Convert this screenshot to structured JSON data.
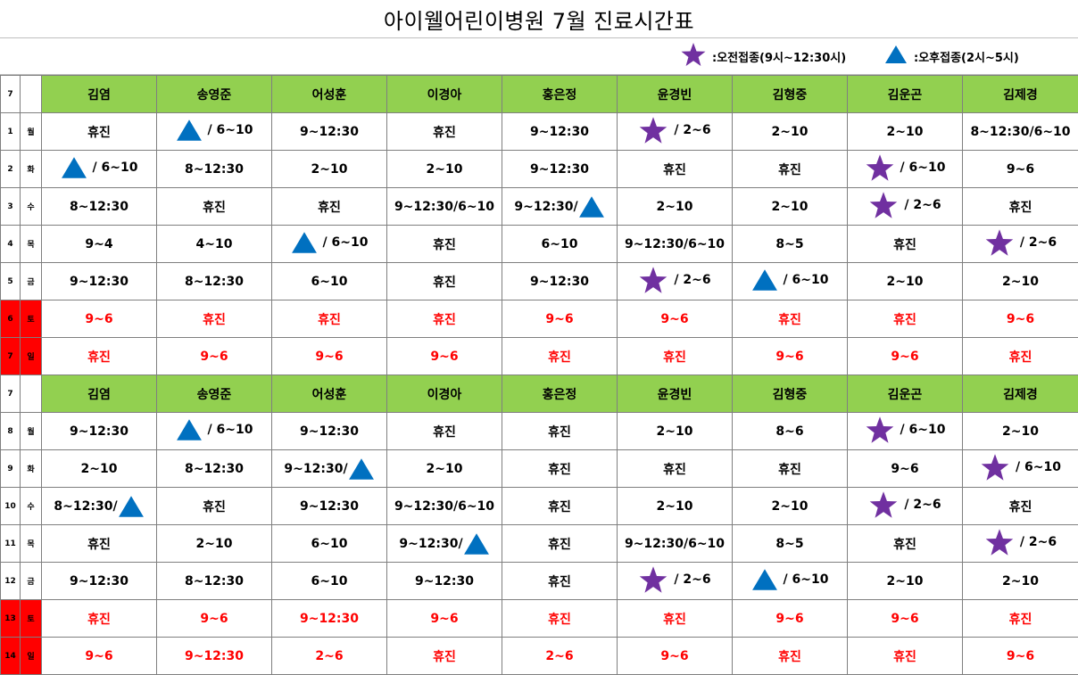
{
  "title": "아이웰어린이병원 7월 진료시간표",
  "legend": [
    {
      "icon": "star",
      "label": ":오전접종(9시~12:30시)"
    },
    {
      "icon": "triangle",
      "label": ":오후접종(2시~5시)"
    }
  ],
  "colors": {
    "header_green": "#92d050",
    "weekend_red": "#ff0000",
    "star_purple": "#7030a0",
    "triangle_blue": "#0070c0"
  },
  "month_label": "7",
  "doctors": [
    "김염",
    "송영준",
    "어성훈",
    "이경아",
    "홍은정",
    "윤경빈",
    "김형중",
    "김운곤",
    "김제경"
  ],
  "blocks": [
    {
      "rows": [
        {
          "date": "1",
          "day": "월",
          "weekend": false,
          "cells": [
            {
              "text": "휴진"
            },
            {
              "icon": "triangle",
              "text": "/ 6~10"
            },
            {
              "text": "9~12:30"
            },
            {
              "text": "휴진"
            },
            {
              "text": "9~12:30"
            },
            {
              "icon": "star",
              "text": "/ 2~6"
            },
            {
              "text": "2~10"
            },
            {
              "text": "2~10"
            },
            {
              "text": "8~12:30/6~10"
            }
          ]
        },
        {
          "date": "2",
          "day": "화",
          "weekend": false,
          "cells": [
            {
              "icon": "triangle",
              "text": "/ 6~10"
            },
            {
              "text": "8~12:30"
            },
            {
              "text": "2~10"
            },
            {
              "text": "2~10"
            },
            {
              "text": "9~12:30"
            },
            {
              "text": "휴진"
            },
            {
              "text": "휴진"
            },
            {
              "icon": "star",
              "text": "/ 6~10"
            },
            {
              "text": "9~6"
            }
          ]
        },
        {
          "date": "3",
          "day": "수",
          "weekend": false,
          "cells": [
            {
              "text": "8~12:30"
            },
            {
              "text": "휴진"
            },
            {
              "text": "휴진"
            },
            {
              "text": "9~12:30/6~10"
            },
            {
              "text": "9~12:30/",
              "icon_after": "triangle"
            },
            {
              "text": "2~10"
            },
            {
              "text": "2~10"
            },
            {
              "icon": "star",
              "text": "/ 2~6"
            },
            {
              "text": "휴진"
            }
          ]
        },
        {
          "date": "4",
          "day": "목",
          "weekend": false,
          "cells": [
            {
              "text": "9~4"
            },
            {
              "text": "4~10"
            },
            {
              "icon": "triangle",
              "text": "/ 6~10"
            },
            {
              "text": "휴진"
            },
            {
              "text": "6~10"
            },
            {
              "text": "9~12:30/6~10"
            },
            {
              "text": "8~5"
            },
            {
              "text": "휴진"
            },
            {
              "icon": "star",
              "text": "/ 2~6"
            }
          ]
        },
        {
          "date": "5",
          "day": "금",
          "weekend": false,
          "cells": [
            {
              "text": "9~12:30"
            },
            {
              "text": "8~12:30"
            },
            {
              "text": "6~10"
            },
            {
              "text": "휴진"
            },
            {
              "text": "9~12:30"
            },
            {
              "icon": "star",
              "text": "/ 2~6"
            },
            {
              "icon": "triangle",
              "text": "/ 6~10"
            },
            {
              "text": "2~10"
            },
            {
              "text": "2~10"
            }
          ]
        },
        {
          "date": "6",
          "day": "토",
          "weekend": true,
          "cells": [
            {
              "text": "9~6"
            },
            {
              "text": "휴진"
            },
            {
              "text": "휴진"
            },
            {
              "text": "휴진"
            },
            {
              "text": "9~6"
            },
            {
              "text": "9~6"
            },
            {
              "text": "휴진"
            },
            {
              "text": "휴진"
            },
            {
              "text": "9~6"
            }
          ]
        },
        {
          "date": "7",
          "day": "일",
          "weekend": true,
          "cells": [
            {
              "text": "휴진"
            },
            {
              "text": "9~6"
            },
            {
              "text": "9~6"
            },
            {
              "text": "9~6"
            },
            {
              "text": "휴진"
            },
            {
              "text": "휴진"
            },
            {
              "text": "9~6"
            },
            {
              "text": "9~6"
            },
            {
              "text": "휴진"
            }
          ]
        }
      ]
    },
    {
      "rows": [
        {
          "date": "8",
          "day": "월",
          "weekend": false,
          "cells": [
            {
              "text": "9~12:30"
            },
            {
              "icon": "triangle",
              "text": "/ 6~10"
            },
            {
              "text": "9~12:30"
            },
            {
              "text": "휴진"
            },
            {
              "text": "휴진"
            },
            {
              "text": "2~10"
            },
            {
              "text": "8~6"
            },
            {
              "icon": "star",
              "text": "/ 6~10"
            },
            {
              "text": "2~10"
            }
          ]
        },
        {
          "date": "9",
          "day": "화",
          "weekend": false,
          "cells": [
            {
              "text": "2~10"
            },
            {
              "text": "8~12:30"
            },
            {
              "text": "9~12:30/",
              "icon_after": "triangle"
            },
            {
              "text": "2~10"
            },
            {
              "text": "휴진"
            },
            {
              "text": "휴진"
            },
            {
              "text": "휴진"
            },
            {
              "text": "9~6"
            },
            {
              "icon": "star",
              "text": "/ 6~10"
            }
          ]
        },
        {
          "date": "10",
          "day": "수",
          "weekend": false,
          "cells": [
            {
              "text": "8~12:30/",
              "icon_after": "triangle"
            },
            {
              "text": "휴진"
            },
            {
              "text": "9~12:30"
            },
            {
              "text": "9~12:30/6~10"
            },
            {
              "text": "휴진"
            },
            {
              "text": "2~10"
            },
            {
              "text": "2~10"
            },
            {
              "icon": "star",
              "text": "/ 2~6"
            },
            {
              "text": "휴진"
            }
          ]
        },
        {
          "date": "11",
          "day": "목",
          "weekend": false,
          "cells": [
            {
              "text": "휴진"
            },
            {
              "text": "2~10"
            },
            {
              "text": "6~10"
            },
            {
              "text": "9~12:30/",
              "icon_after": "triangle"
            },
            {
              "text": "휴진"
            },
            {
              "text": "9~12:30/6~10"
            },
            {
              "text": "8~5"
            },
            {
              "text": "휴진"
            },
            {
              "icon": "star",
              "text": "/ 2~6"
            }
          ]
        },
        {
          "date": "12",
          "day": "금",
          "weekend": false,
          "cells": [
            {
              "text": "9~12:30"
            },
            {
              "text": "8~12:30"
            },
            {
              "text": "6~10"
            },
            {
              "text": "9~12:30"
            },
            {
              "text": "휴진"
            },
            {
              "icon": "star",
              "text": "/ 2~6"
            },
            {
              "icon": "triangle",
              "text": "/ 6~10"
            },
            {
              "text": "2~10"
            },
            {
              "text": "2~10"
            }
          ]
        },
        {
          "date": "13",
          "day": "토",
          "weekend": true,
          "cells": [
            {
              "text": "휴진"
            },
            {
              "text": "9~6"
            },
            {
              "text": "9~12:30"
            },
            {
              "text": "9~6"
            },
            {
              "text": "휴진"
            },
            {
              "text": "휴진"
            },
            {
              "text": "9~6"
            },
            {
              "text": "9~6"
            },
            {
              "text": "휴진"
            }
          ]
        },
        {
          "date": "14",
          "day": "일",
          "weekend": true,
          "cells": [
            {
              "text": "9~6"
            },
            {
              "text": "9~12:30"
            },
            {
              "text": "2~6"
            },
            {
              "text": "휴진"
            },
            {
              "text": "2~6"
            },
            {
              "text": "9~6"
            },
            {
              "text": "휴진"
            },
            {
              "text": "휴진"
            },
            {
              "text": "9~6"
            }
          ]
        }
      ]
    }
  ]
}
